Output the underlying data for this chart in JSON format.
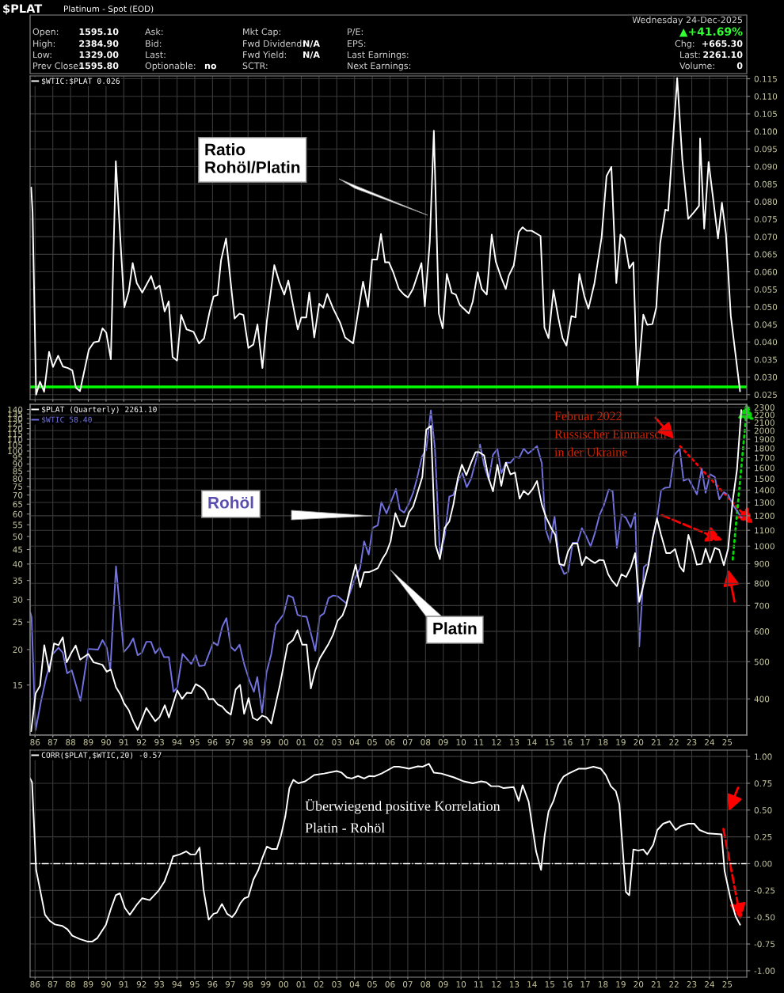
{
  "chart_data": [
    {
      "type": "line",
      "tick_labels": "y",
      "grid": true,
      "legend": "top left",
      "title": "$PLAT",
      "subtitle": "Platinum - Spot (EOD)",
      "xlim": [
        1985.72,
        2026.1
      ],
      "xticks": [
        1986,
        1987,
        1988,
        1989,
        1990,
        1991,
        1992,
        1993,
        1994,
        1995,
        1996,
        1997,
        1998,
        1999,
        2000,
        2001,
        2002,
        2003,
        2004,
        2005,
        2006,
        2007,
        2008,
        2009,
        2010,
        2011,
        2012,
        2013,
        2014,
        2015,
        2016,
        2017,
        2018,
        2019,
        2020,
        2021,
        2022,
        2023,
        2024,
        2025
      ],
      "ylim": [
        0.0236,
        0.1158
      ],
      "yticks": [
        {
          "value": 0.025,
          "label": "0.025"
        },
        {
          "value": 0.03,
          "label": "0.030"
        },
        {
          "value": 0.035,
          "label": "0.035"
        },
        {
          "value": 0.04,
          "label": "0.040"
        },
        {
          "value": 0.045,
          "label": "0.045"
        },
        {
          "value": 0.05,
          "label": "0.050"
        },
        {
          "value": 0.055,
          "label": "0.055"
        },
        {
          "value": 0.06,
          "label": "0.060"
        },
        {
          "value": 0.065,
          "label": "0.065"
        },
        {
          "value": 0.07,
          "label": "0.070"
        },
        {
          "value": 0.075,
          "label": "0.075"
        },
        {
          "value": 0.08,
          "label": "0.080"
        },
        {
          "value": 0.085,
          "label": "0.085"
        },
        {
          "value": 0.09,
          "label": "0.090"
        },
        {
          "value": 0.095,
          "label": "0.095"
        },
        {
          "value": 0.1,
          "label": "0.100"
        },
        {
          "value": 0.105,
          "label": "0.105"
        },
        {
          "value": 0.11,
          "label": "0.110"
        },
        {
          "value": 0.115,
          "label": "0.115"
        }
      ],
      "ref_lines": [
        {
          "axis": "y",
          "value": 0.0272,
          "color": "#00ff00"
        }
      ],
      "annotations": [
        "Open:",
        "1595.10",
        "High:",
        "2384.90",
        "Low:",
        "1329.00",
        "Prev Close:",
        "1595.80",
        "Ask:",
        "Bid:",
        "Last:",
        "Optionable:",
        "no",
        "Mkt Cap:",
        "Fwd Dividend:",
        "Fwd Yield:",
        "SCTR:",
        "N/A",
        "N/A",
        "P/E:",
        "EPS:",
        "Last Earnings:",
        "Next Earnings:",
        "Wednesday 24-Dec-2025",
        "▲+41.69%",
        "Chg:",
        "+665.30",
        "Last:",
        "2261.10",
        "Volume:",
        "0",
        "Ratio\nRohöl/Platin"
      ],
      "series": [
        {
          "name": "$WTIC:$PLAT 0.026",
          "color": "#ffffff",
          "x": [
            1985.78,
            1985.86,
            1986.06,
            1986.28,
            1986.51,
            1986.79,
            1987.01,
            1987.3,
            1987.57,
            1987.85,
            1988.1,
            1988.3,
            1988.53,
            1989.03,
            1989.31,
            1989.59,
            1989.8,
            1990.01,
            1990.27,
            1990.55,
            1991.03,
            1991.28,
            1991.5,
            1991.73,
            1992.04,
            1992.54,
            1992.77,
            1993.02,
            1993.3,
            1993.53,
            1993.75,
            1994.0,
            1994.23,
            1994.54,
            1994.93,
            1995.24,
            1995.52,
            1995.83,
            1996.06,
            1996.28,
            1996.48,
            1996.76,
            1997.24,
            1997.52,
            1997.74,
            1998.02,
            1998.3,
            1998.53,
            1998.81,
            1999.06,
            1999.48,
            1999.76,
            2000.04,
            2000.27,
            2000.52,
            2000.8,
            2001.0,
            2001.28,
            2001.45,
            2001.73,
            2002.01,
            2002.24,
            2002.46,
            2002.8,
            2003.19,
            2003.47,
            2003.92,
            2004.48,
            2004.76,
            2004.99,
            2005.27,
            2005.49,
            2005.72,
            2005.94,
            2006.17,
            2006.5,
            2006.79,
            2007.01,
            2007.29,
            2007.77,
            2007.96,
            2008.24,
            2008.47,
            2008.75,
            2008.97,
            2009.2,
            2009.48,
            2009.71,
            2009.93,
            2010.44,
            2010.66,
            2010.94,
            2011.17,
            2011.45,
            2011.73,
            2011.96,
            2012.24,
            2012.52,
            2012.69,
            2012.97,
            2013.25,
            2013.47,
            2013.7,
            2013.98,
            2014.48,
            2014.7,
            2014.93,
            2015.21,
            2015.49,
            2015.72,
            2015.94,
            2016.22,
            2016.45,
            2016.67,
            2016.95,
            2017.18,
            2017.52,
            2017.92,
            2018.2,
            2018.47,
            2018.75,
            2018.98,
            2019.2,
            2019.48,
            2019.71,
            2019.93,
            2020.27,
            2020.49,
            2020.78,
            2021.0,
            2021.22,
            2021.51,
            2021.67,
            2021.96,
            2022.18,
            2022.47,
            2022.8,
            2023.13,
            2023.41,
            2023.47,
            2023.7,
            2023.95,
            2024.48,
            2024.7,
            2024.93,
            2025.2,
            2025.72
          ],
          "values": [
            0.084,
            0.077,
            0.025,
            0.0287,
            0.0258,
            0.0372,
            0.0329,
            0.0361,
            0.033,
            0.0326,
            0.0319,
            0.027,
            0.026,
            0.0378,
            0.0399,
            0.0402,
            0.0439,
            0.0427,
            0.0351,
            0.0915,
            0.0499,
            0.0544,
            0.0625,
            0.0568,
            0.0541,
            0.0588,
            0.0551,
            0.0561,
            0.0487,
            0.0516,
            0.0357,
            0.0347,
            0.0477,
            0.0436,
            0.0429,
            0.0396,
            0.041,
            0.0485,
            0.053,
            0.0534,
            0.0633,
            0.0695,
            0.0467,
            0.0481,
            0.0477,
            0.0383,
            0.0393,
            0.045,
            0.0326,
            0.046,
            0.0619,
            0.0571,
            0.0535,
            0.0575,
            0.0509,
            0.0436,
            0.047,
            0.047,
            0.0541,
            0.0413,
            0.0509,
            0.0498,
            0.0537,
            0.0495,
            0.0455,
            0.0413,
            0.0396,
            0.0572,
            0.05,
            0.0635,
            0.0635,
            0.0708,
            0.0627,
            0.0627,
            0.06,
            0.0551,
            0.0535,
            0.0527,
            0.0551,
            0.0625,
            0.0502,
            0.0685,
            0.1002,
            0.0481,
            0.0439,
            0.0594,
            0.054,
            0.0535,
            0.0506,
            0.0481,
            0.0515,
            0.0599,
            0.0551,
            0.0535,
            0.0706,
            0.0629,
            0.0587,
            0.0551,
            0.0589,
            0.0618,
            0.0713,
            0.0727,
            0.0717,
            0.0717,
            0.0702,
            0.0441,
            0.0411,
            0.0548,
            0.0467,
            0.0411,
            0.039,
            0.0474,
            0.047,
            0.0594,
            0.053,
            0.0495,
            0.0568,
            0.0698,
            0.0873,
            0.0899,
            0.0568,
            0.0706,
            0.0695,
            0.061,
            0.0627,
            0.0277,
            0.0478,
            0.0449,
            0.0451,
            0.0498,
            0.0681,
            0.0777,
            0.0774,
            0.0988,
            0.1152,
            0.0918,
            0.0751,
            0.077,
            0.0788,
            0.098,
            0.0723,
            0.0913,
            0.0695,
            0.0797,
            0.0706,
            0.0474,
            0.026
          ]
        }
      ]
    },
    {
      "type": "line",
      "grid": true,
      "legend": "top left",
      "log": "y",
      "xlim": [
        1985.72,
        2026.1
      ],
      "xticks": [
        {
          "value": 1986,
          "label": "86"
        },
        {
          "value": 1987,
          "label": "87"
        },
        {
          "value": 1988,
          "label": "88"
        },
        {
          "value": 1989,
          "label": "89"
        },
        {
          "value": 1990,
          "label": "90"
        },
        {
          "value": 1991,
          "label": "91"
        },
        {
          "value": 1992,
          "label": "92"
        },
        {
          "value": 1993,
          "label": "93"
        },
        {
          "value": 1994,
          "label": "94"
        },
        {
          "value": 1995,
          "label": "95"
        },
        {
          "value": 1996,
          "label": "96"
        },
        {
          "value": 1997,
          "label": "97"
        },
        {
          "value": 1998,
          "label": "98"
        },
        {
          "value": 1999,
          "label": "99"
        },
        {
          "value": 2000,
          "label": "00"
        },
        {
          "value": 2001,
          "label": "01"
        },
        {
          "value": 2002,
          "label": "02"
        },
        {
          "value": 2003,
          "label": "03"
        },
        {
          "value": 2004,
          "label": "04"
        },
        {
          "value": 2005,
          "label": "05"
        },
        {
          "value": 2006,
          "label": "06"
        },
        {
          "value": 2007,
          "label": "07"
        },
        {
          "value": 2008,
          "label": "08"
        },
        {
          "value": 2009,
          "label": "09"
        },
        {
          "value": 2010,
          "label": "10"
        },
        {
          "value": 2011,
          "label": "11"
        },
        {
          "value": 2012,
          "label": "12"
        },
        {
          "value": 2013,
          "label": "13"
        },
        {
          "value": 2014,
          "label": "14"
        },
        {
          "value": 2015,
          "label": "15"
        },
        {
          "value": 2016,
          "label": "16"
        },
        {
          "value": 2017,
          "label": "17"
        },
        {
          "value": 2018,
          "label": "18"
        },
        {
          "value": 2019,
          "label": "19"
        },
        {
          "value": 2020,
          "label": "20"
        },
        {
          "value": 2021,
          "label": "21"
        },
        {
          "value": 2022,
          "label": "22"
        },
        {
          "value": 2023,
          "label": "23"
        },
        {
          "value": 2024,
          "label": "24"
        },
        {
          "value": 2025,
          "label": "25"
        }
      ],
      "ylim": [
        322,
        2342
      ],
      "yticks": [
        400,
        500,
        600,
        700,
        800,
        900,
        1000,
        1100,
        1200,
        1300,
        1400,
        1500,
        1600,
        1700,
        1800,
        1900,
        2000,
        2100,
        2200,
        2300
      ],
      "annotations": [
        "Platin",
        "Februar 2022\nRussischer Einmarsch\nin der Ukraine"
      ],
      "series": [
        {
          "name": "$PLAT (Quarterly) 2261.10",
          "color": "#ffffff",
          "x": [
            1985.78,
            1986.03,
            1986.28,
            1986.52,
            1986.8,
            1987.07,
            1987.32,
            1987.56,
            1987.78,
            1988.04,
            1988.29,
            1988.54,
            1989.0,
            1989.3,
            1989.79,
            1990.04,
            1990.27,
            1990.56,
            1990.83,
            1991.01,
            1991.28,
            1991.53,
            1991.78,
            1992.27,
            1992.77,
            1993.02,
            1993.31,
            1993.54,
            1994.01,
            1994.28,
            1994.55,
            1994.8,
            1995.05,
            1995.29,
            1995.55,
            1995.8,
            1996.04,
            1996.29,
            1996.55,
            1996.78,
            1997.03,
            1997.3,
            1997.55,
            1997.78,
            1998.03,
            1998.27,
            1998.52,
            1998.79,
            1999.04,
            1999.31,
            1999.78,
            2000.23,
            2000.53,
            2000.79,
            2001.05,
            2001.3,
            2001.54,
            2001.79,
            2002.04,
            2002.53,
            2002.79,
            2003.05,
            2003.32,
            2003.53,
            2003.8,
            2004.06,
            2004.32,
            2004.54,
            2004.81,
            2005.06,
            2005.31,
            2005.58,
            2005.8,
            2006.03,
            2006.3,
            2006.6,
            2006.82,
            2007.07,
            2007.3,
            2007.57,
            2007.82,
            2008.04,
            2008.3,
            2008.56,
            2008.81,
            2009.08,
            2009.34,
            2009.57,
            2009.82,
            2010.05,
            2010.3,
            2010.57,
            2010.82,
            2011.01,
            2011.3,
            2011.56,
            2011.8,
            2012.05,
            2012.27,
            2012.53,
            2012.79,
            2013.04,
            2013.3,
            2013.53,
            2013.78,
            2014.04,
            2014.28,
            2014.55,
            2014.8,
            2015.09,
            2015.31,
            2015.54,
            2015.81,
            2016.03,
            2016.29,
            2016.56,
            2016.81,
            2017.04,
            2017.3,
            2017.55,
            2017.8,
            2018.04,
            2018.29,
            2018.52,
            2018.78,
            2019.04,
            2019.3,
            2019.56,
            2019.81,
            2020.04,
            2020.3,
            2020.56,
            2020.8,
            2021.04,
            2021.27,
            2021.56,
            2021.79,
            2022.06,
            2022.32,
            2022.54,
            2022.81,
            2023.06,
            2023.29,
            2023.56,
            2023.78,
            2024.03,
            2024.3,
            2024.55,
            2024.81,
            2025.05,
            2025.3,
            2025.55,
            2025.79
          ],
          "values": [
            330,
            413,
            433,
            552,
            471,
            558,
            552,
            579,
            498,
            527,
            551,
            506,
            524,
            498,
            491,
            471,
            477,
            429,
            409,
            390,
            374,
            350,
            332,
            379,
            350,
            359,
            385,
            358,
            421,
            400,
            415,
            414,
            437,
            431,
            421,
            399,
            400,
            387,
            382,
            371,
            364,
            423,
            435,
            366,
            402,
            357,
            352,
            362,
            358,
            345,
            431,
            554,
            569,
            604,
            554,
            554,
            426,
            475,
            510,
            556,
            588,
            640,
            660,
            700,
            800,
            895,
            782,
            855,
            856,
            865,
            876,
            928,
            963,
            1029,
            1219,
            1126,
            1126,
            1225,
            1268,
            1389,
            1515,
            2011,
            2058,
            1009,
            925,
            1116,
            1160,
            1284,
            1502,
            1630,
            1530,
            1651,
            1758,
            1758,
            1724,
            1502,
            1389,
            1630,
            1436,
            1651,
            1538,
            1556,
            1329,
            1393,
            1362,
            1410,
            1478,
            1284,
            1187,
            1113,
            1070,
            900,
            890,
            969,
            1016,
            1016,
            892,
            938,
            918,
            904,
            921,
            918,
            845,
            812,
            787,
            845,
            831,
            879,
            959,
            716,
            800,
            892,
            1052,
            1181,
            1070,
            959,
            959,
            982,
            886,
            858,
            1070,
            982,
            895,
            900,
            985,
            907,
            990,
            978,
            892,
            985,
            1306,
            1585,
            2261.1
          ]
        }
      ]
    },
    {
      "type": "line",
      "tick_labels": "y",
      "legend": "top left",
      "log": "y",
      "xlim": [
        1985.72,
        2026.1
      ],
      "xticks": [
        1986,
        1987,
        1988,
        1989,
        1990,
        1991,
        1992,
        1993,
        1994,
        1995,
        1996,
        1997,
        1998,
        1999,
        2000,
        2001,
        2002,
        2003,
        2004,
        2005,
        2006,
        2007,
        2008,
        2009,
        2010,
        2011,
        2012,
        2013,
        2014,
        2015,
        2016,
        2017,
        2018,
        2019,
        2020,
        2021,
        2022,
        2023,
        2024,
        2025
      ],
      "ylim": [
        10,
        146
      ],
      "yticks": [
        15,
        20,
        25,
        30,
        35,
        40,
        45,
        50,
        55,
        60,
        65,
        70,
        75,
        80,
        85,
        90,
        95,
        100,
        105,
        110,
        115,
        120,
        125,
        130,
        135,
        140
      ],
      "annotations": [
        "Rohöl"
      ],
      "series": [
        {
          "name": "$WTIC 58.40",
          "color": "#7272e0",
          "x": [
            1985.73,
            1985.8,
            1986.03,
            1986.33,
            1986.62,
            1987.0,
            1987.32,
            1987.56,
            1987.81,
            1988.07,
            1988.56,
            1989.0,
            1989.55,
            1989.8,
            1990.04,
            1990.24,
            1990.56,
            1991.0,
            1991.3,
            1991.53,
            1991.78,
            1992.02,
            1992.27,
            1992.53,
            1992.77,
            1993.02,
            1993.27,
            1993.54,
            1993.8,
            1994.01,
            1994.31,
            1994.8,
            1995.05,
            1995.25,
            1995.55,
            1996.04,
            1996.29,
            1996.55,
            1996.78,
            1997.03,
            1997.26,
            1997.52,
            1997.78,
            1998.07,
            1998.33,
            1998.52,
            1998.79,
            1999.04,
            1999.31,
            1999.56,
            2000.0,
            2000.26,
            2000.53,
            2000.79,
            2001.05,
            2001.3,
            2001.79,
            2002.04,
            2002.28,
            2002.53,
            2002.79,
            2003.05,
            2003.53,
            2004.02,
            2004.32,
            2004.54,
            2004.8,
            2005.02,
            2005.31,
            2005.51,
            2005.8,
            2006.33,
            2006.55,
            2006.8,
            2007.07,
            2007.3,
            2007.52,
            2007.81,
            2008.04,
            2008.3,
            2008.53,
            2008.82,
            2009.08,
            2009.34,
            2009.57,
            2009.82,
            2010.08,
            2010.32,
            2010.57,
            2011.07,
            2011.3,
            2011.56,
            2011.8,
            2012.05,
            2012.27,
            2012.53,
            2012.79,
            2013.04,
            2013.28,
            2013.53,
            2013.78,
            2014.28,
            2014.55,
            2014.77,
            2015.02,
            2015.27,
            2015.54,
            2015.81,
            2016.03,
            2016.29,
            2016.56,
            2016.81,
            2017.06,
            2017.3,
            2017.55,
            2017.8,
            2018.06,
            2018.32,
            2018.54,
            2018.78,
            2019.04,
            2019.29,
            2019.56,
            2019.81,
            2020.04,
            2020.3,
            2020.56,
            2020.8,
            2021.04,
            2021.27,
            2021.49,
            2021.76,
            2022.02,
            2022.32,
            2022.54,
            2022.81,
            2023.29,
            2023.56,
            2023.78,
            2024.03,
            2024.3,
            2024.55,
            2024.81,
            2025.05,
            2025.3,
            2025.79
          ],
          "values": [
            27.0,
            26.1,
            10.4,
            13.1,
            15.9,
            19.3,
            20.3,
            19.5,
            16.5,
            16.9,
            13.2,
            20.1,
            20.0,
            21.6,
            20.3,
            17.0,
            39.3,
            19.6,
            20.6,
            21.9,
            19.1,
            19.5,
            21.3,
            21.3,
            19.4,
            20.3,
            18.8,
            18.8,
            14.2,
            14.7,
            19.3,
            17.8,
            19.1,
            17.5,
            17.6,
            21.2,
            20.7,
            24.1,
            25.8,
            20.4,
            19.8,
            20.8,
            17.8,
            15.6,
            14.2,
            16.0,
            12.0,
            16.6,
            19.3,
            24.4,
            26.6,
            31.0,
            30.5,
            26.5,
            26.2,
            26.1,
            19.8,
            26.2,
            26.8,
            30.3,
            31.0,
            30.8,
            29.1,
            35.5,
            38.8,
            48.1,
            43.2,
            53.6,
            54.8,
            66.1,
            60.3,
            73.5,
            62.2,
            60.7,
            65.5,
            71.2,
            80.0,
            95.9,
            101,
            139,
            102,
            42.3,
            50.1,
            69.1,
            70.0,
            78.4,
            83.5,
            74.6,
            80.0,
            105.4,
            89.0,
            79.2,
            96.9,
            101.7,
            83.5,
            91.0,
            91.0,
            95.1,
            94.6,
            102,
            97.9,
            104,
            90.6,
            52.9,
            47.5,
            58.8,
            40.4,
            36.9,
            37.5,
            47.5,
            47.5,
            53.5,
            50.0,
            46.1,
            51.6,
            59.4,
            64.7,
            73.2,
            72.2,
            45.6,
            59.8,
            58.2,
            53.8,
            60.4,
            20.5,
            39.0,
            40.4,
            49.0,
            57.5,
            72.6,
            74.2,
            74.5,
            96.9,
            101.7,
            78.6,
            80.0,
            70.4,
            86.7,
            71.3,
            82.8,
            81.0,
            67.6,
            71.6,
            70.1,
            65.0,
            58.4
          ]
        }
      ]
    },
    {
      "type": "line",
      "grid": true,
      "legend": "top left",
      "xlim": [
        1985.72,
        2026.1
      ],
      "xticks": [
        {
          "value": 1986,
          "label": "86"
        },
        {
          "value": 1987,
          "label": "87"
        },
        {
          "value": 1988,
          "label": "88"
        },
        {
          "value": 1989,
          "label": "89"
        },
        {
          "value": 1990,
          "label": "90"
        },
        {
          "value": 1991,
          "label": "91"
        },
        {
          "value": 1992,
          "label": "92"
        },
        {
          "value": 1993,
          "label": "93"
        },
        {
          "value": 1994,
          "label": "94"
        },
        {
          "value": 1995,
          "label": "95"
        },
        {
          "value": 1996,
          "label": "96"
        },
        {
          "value": 1997,
          "label": "97"
        },
        {
          "value": 1998,
          "label": "98"
        },
        {
          "value": 1999,
          "label": "99"
        },
        {
          "value": 2000,
          "label": "00"
        },
        {
          "value": 2001,
          "label": "01"
        },
        {
          "value": 2002,
          "label": "02"
        },
        {
          "value": 2003,
          "label": "03"
        },
        {
          "value": 2004,
          "label": "04"
        },
        {
          "value": 2005,
          "label": "05"
        },
        {
          "value": 2006,
          "label": "06"
        },
        {
          "value": 2007,
          "label": "07"
        },
        {
          "value": 2008,
          "label": "08"
        },
        {
          "value": 2009,
          "label": "09"
        },
        {
          "value": 2010,
          "label": "10"
        },
        {
          "value": 2011,
          "label": "11"
        },
        {
          "value": 2012,
          "label": "12"
        },
        {
          "value": 2013,
          "label": "13"
        },
        {
          "value": 2014,
          "label": "14"
        },
        {
          "value": 2015,
          "label": "15"
        },
        {
          "value": 2016,
          "label": "16"
        },
        {
          "value": 2017,
          "label": "17"
        },
        {
          "value": 2018,
          "label": "18"
        },
        {
          "value": 2019,
          "label": "19"
        },
        {
          "value": 2020,
          "label": "20"
        },
        {
          "value": 2021,
          "label": "21"
        },
        {
          "value": 2022,
          "label": "22"
        },
        {
          "value": 2023,
          "label": "23"
        },
        {
          "value": 2024,
          "label": "24"
        },
        {
          "value": 2025,
          "label": "25"
        }
      ],
      "ylim": [
        -1.06,
        1.06
      ],
      "yticks": [
        {
          "value": 1,
          "label": "1.00"
        },
        {
          "value": 0.75,
          "label": "0.75"
        },
        {
          "value": 0.5,
          "label": "0.50"
        },
        {
          "value": 0.25,
          "label": "0.25"
        },
        {
          "value": 0,
          "label": "0.00"
        },
        {
          "value": -0.25,
          "label": "-0.25"
        },
        {
          "value": -0.5,
          "label": "-0.50"
        },
        {
          "value": -0.75,
          "label": "-0.75"
        },
        {
          "value": -1,
          "label": "-1.00"
        }
      ],
      "ref_lines": [
        {
          "axis": "y",
          "value": 0,
          "color": "#ffffff",
          "line_style": "dashdot"
        }
      ],
      "annotations": [
        "Überwiegend positive Korrelation\nPlatin - Rohöl"
      ],
      "series": [
        {
          "name": "CORR($PLAT,$WTIC,20) -0.57",
          "color": "#ffffff",
          "x": [
            1985.72,
            1985.83,
            1986.06,
            1986.28,
            1986.56,
            1986.84,
            1987.12,
            1987.54,
            1987.83,
            1988.1,
            1988.53,
            1988.95,
            1989.23,
            1989.51,
            1989.99,
            1990.27,
            1990.55,
            1990.78,
            1991.06,
            1991.34,
            1991.76,
            1992.04,
            1992.46,
            1992.97,
            1993.3,
            1993.58,
            1993.78,
            1994.15,
            1994.51,
            1994.76,
            1995.04,
            1995.27,
            1995.49,
            1995.78,
            1996.06,
            1996.25,
            1996.53,
            1996.82,
            1997.1,
            1997.3,
            1997.57,
            1997.8,
            1998.02,
            1998.3,
            1998.58,
            1998.81,
            1999.06,
            1999.34,
            1999.62,
            1999.85,
            2000.1,
            2000.33,
            2000.55,
            2000.83,
            2001.22,
            2001.73,
            2002.29,
            2002.99,
            2003.27,
            2003.56,
            2003.84,
            2004.2,
            2004.54,
            2004.82,
            2005.1,
            2005.52,
            2006.22,
            2006.5,
            2007.07,
            2007.57,
            2007.85,
            2008.19,
            2008.47,
            2008.89,
            2009.6,
            2010.16,
            2010.66,
            2011.14,
            2011.42,
            2011.7,
            2012.12,
            2012.4,
            2012.97,
            2013.25,
            2013.47,
            2013.81,
            2014.23,
            2014.51,
            2014.71,
            2014.93,
            2015.21,
            2015.49,
            2015.78,
            2016.06,
            2016.62,
            2017.04,
            2017.46,
            2017.88,
            2018.16,
            2018.44,
            2018.72,
            2018.92,
            2019.29,
            2019.48,
            2019.71,
            2019.99,
            2020.27,
            2020.49,
            2020.83,
            2021.06,
            2021.39,
            2021.76,
            2022.1,
            2022.37,
            2022.8,
            2023.13,
            2023.44,
            2023.92,
            2024.68,
            2024.85,
            2025.18,
            2025.47,
            2025.72
          ],
          "values": [
            0.795,
            0.759,
            -0.059,
            -0.241,
            -0.477,
            -0.536,
            -0.568,
            -0.582,
            -0.614,
            -0.673,
            -0.705,
            -0.727,
            -0.727,
            -0.695,
            -0.573,
            -0.423,
            -0.295,
            -0.277,
            -0.414,
            -0.477,
            -0.377,
            -0.323,
            -0.341,
            -0.25,
            -0.164,
            -0.036,
            0.068,
            0.086,
            0.114,
            0.086,
            0.086,
            0.15,
            -0.241,
            -0.523,
            -0.468,
            -0.459,
            -0.377,
            -0.468,
            -0.5,
            -0.459,
            -0.368,
            -0.323,
            -0.309,
            -0.15,
            -0.059,
            0.055,
            0.159,
            0.136,
            0.136,
            0.259,
            0.441,
            0.705,
            0.782,
            0.75,
            0.768,
            0.827,
            0.841,
            0.864,
            0.85,
            0.805,
            0.795,
            0.818,
            0.795,
            0.818,
            0.814,
            0.841,
            0.905,
            0.905,
            0.886,
            0.909,
            0.905,
            0.932,
            0.85,
            0.841,
            0.805,
            0.768,
            0.75,
            0.768,
            0.759,
            0.723,
            0.723,
            0.705,
            0.714,
            0.586,
            0.732,
            0.577,
            0.114,
            -0.059,
            0.259,
            0.486,
            0.586,
            0.736,
            0.814,
            0.841,
            0.886,
            0.886,
            0.905,
            0.886,
            0.827,
            0.723,
            0.677,
            0.555,
            -0.264,
            -0.295,
            0.132,
            0.123,
            0.132,
            0.086,
            0.177,
            0.314,
            0.373,
            0.395,
            0.314,
            0.35,
            0.373,
            0.373,
            0.314,
            0.282,
            0.273,
            -0.068,
            -0.323,
            -0.491,
            -0.57
          ]
        }
      ]
    }
  ]
}
